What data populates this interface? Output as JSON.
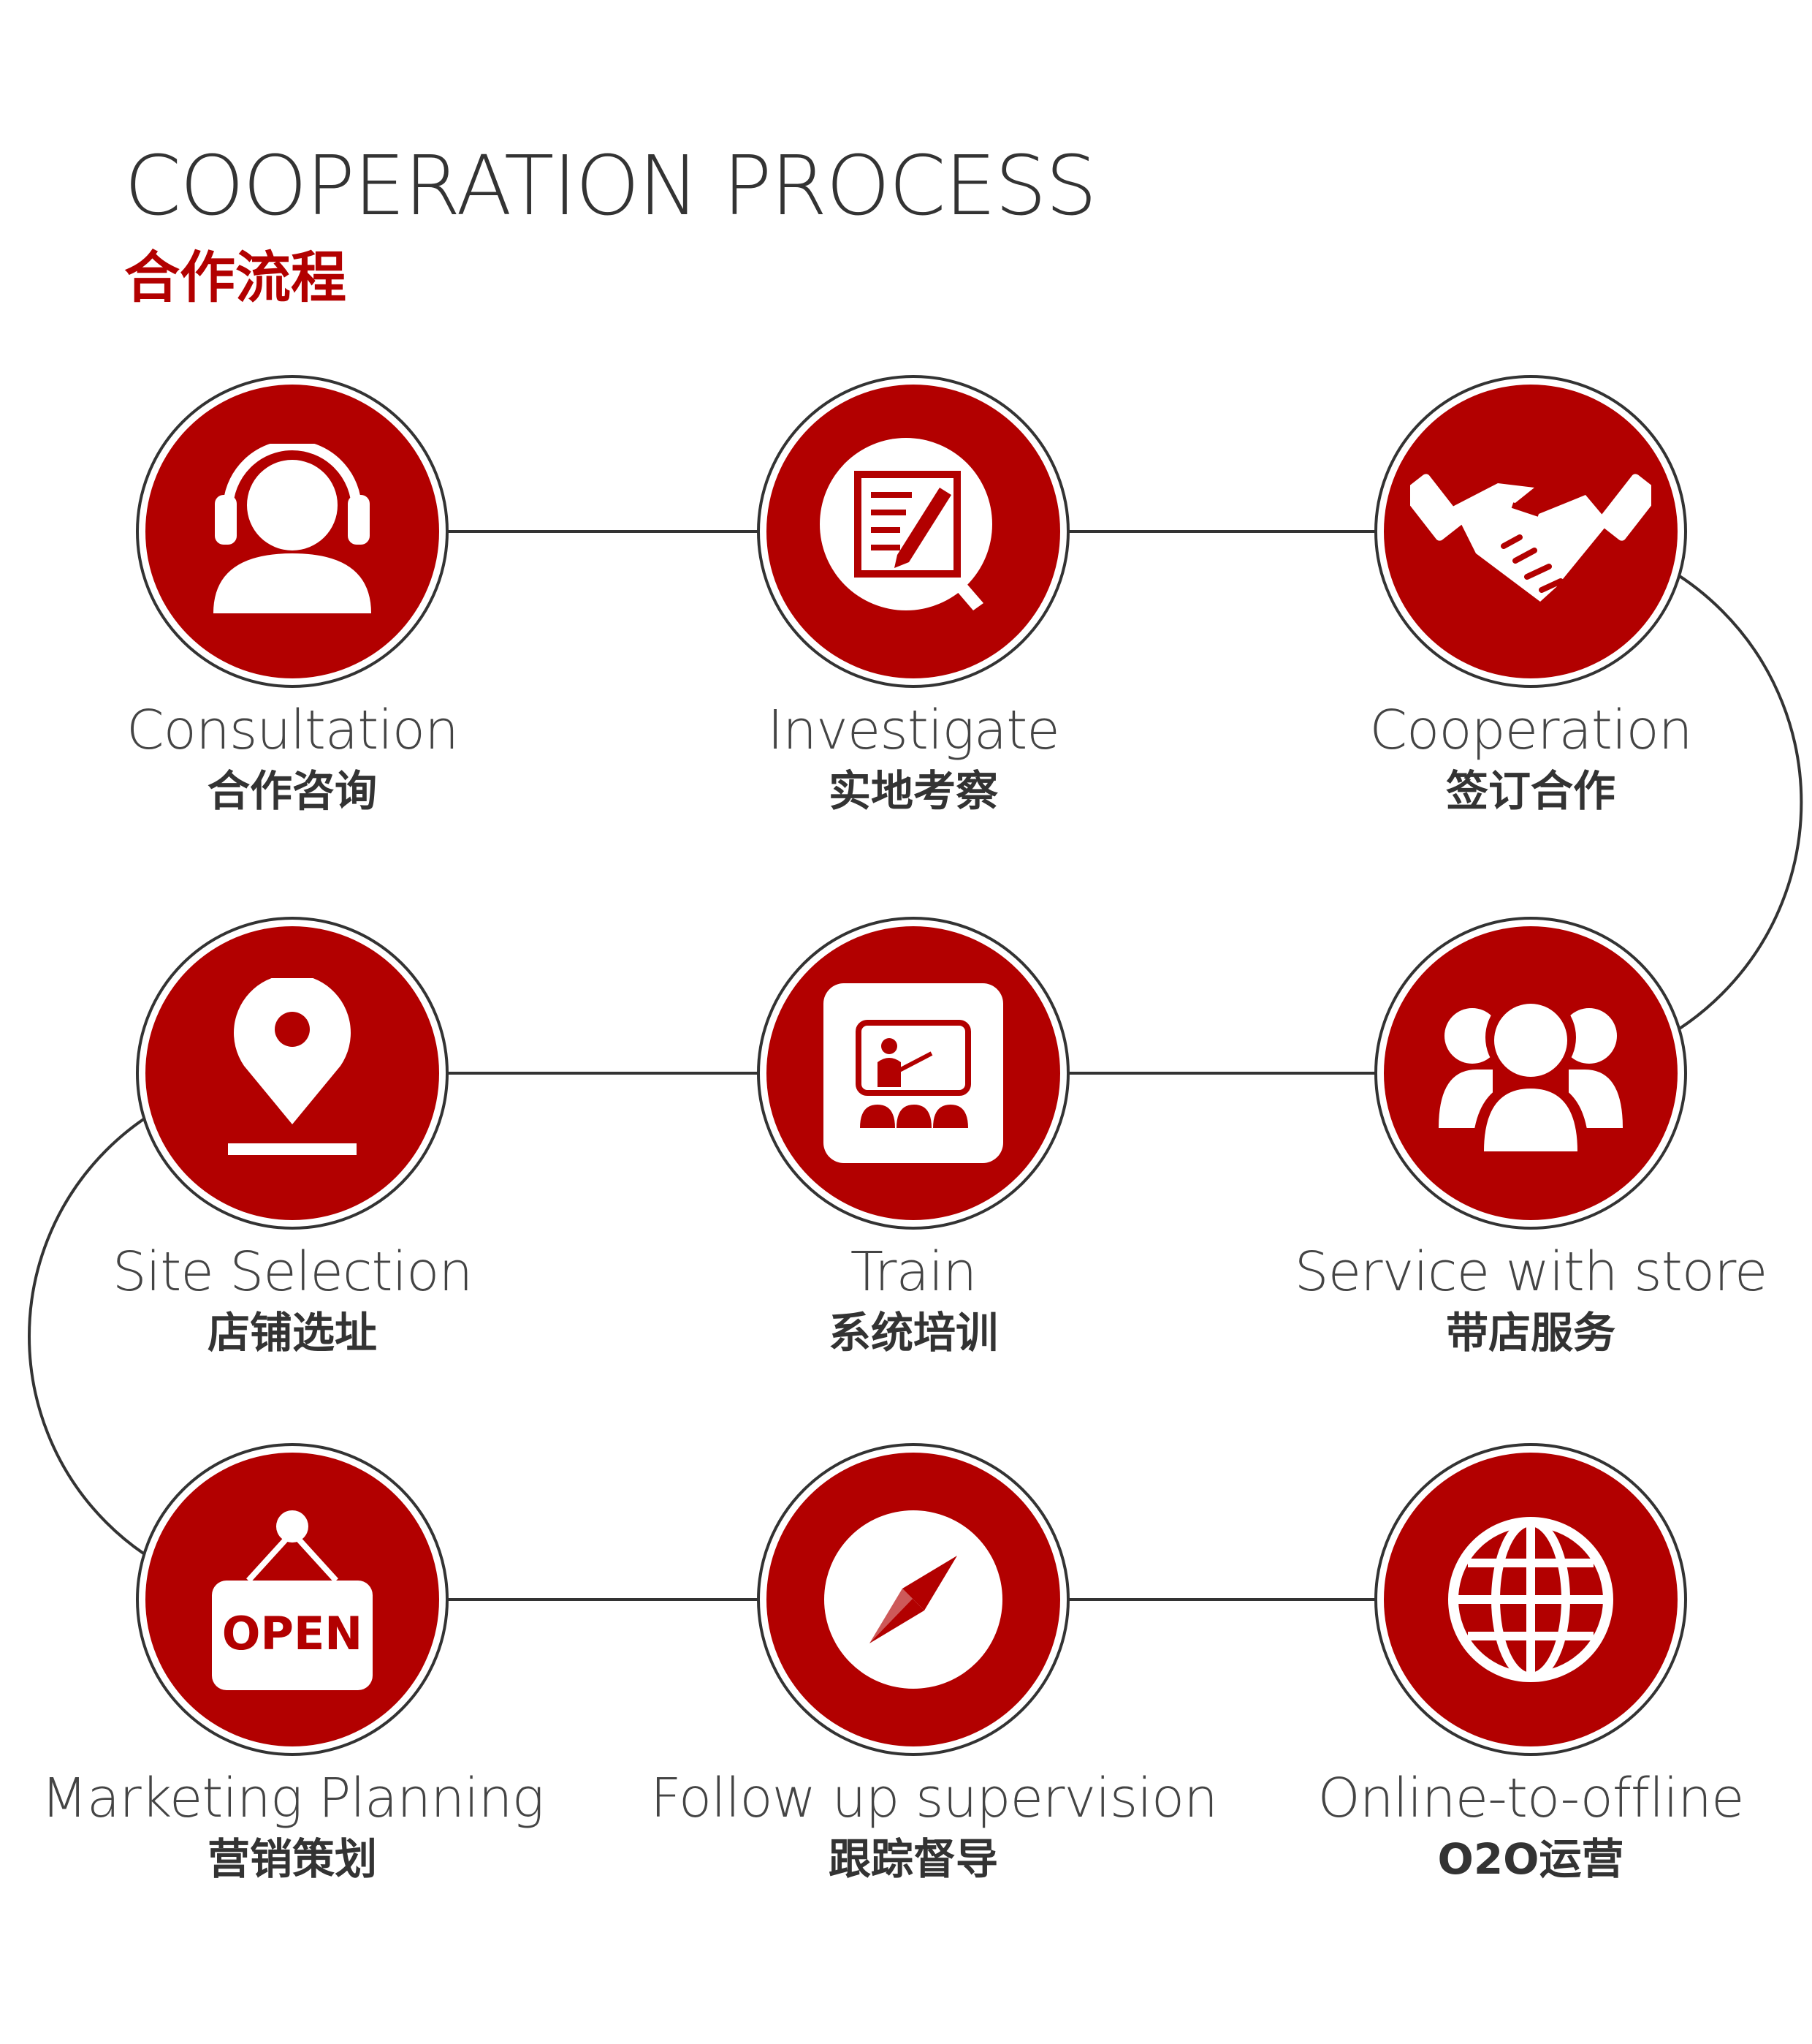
{
  "header": {
    "title_en": "COOPERATION PROCESS",
    "title_cn": "合作流程"
  },
  "colors": {
    "accent": "#b20000",
    "line": "#333333",
    "text": "#444444"
  },
  "steps": [
    {
      "en": "Consultation",
      "cn": "合作咨询",
      "icon": "headset-user-icon"
    },
    {
      "en": "Investigate",
      "cn": "实地考察",
      "icon": "document-inspect-icon"
    },
    {
      "en": "Cooperation",
      "cn": "签订合作",
      "icon": "handshake-icon"
    },
    {
      "en": "Service with store",
      "cn": "带店服务",
      "icon": "user-group-icon"
    },
    {
      "en": "Train",
      "cn": "系统培训",
      "icon": "training-board-icon"
    },
    {
      "en": "Site Selection",
      "cn": "店铺选址",
      "icon": "location-pin-icon"
    },
    {
      "en": "Marketing Planning",
      "cn": "营销策划",
      "icon": "open-sign-icon",
      "sign_text": "OPEN"
    },
    {
      "en": "Follow up supervision",
      "cn": "跟踪督导",
      "icon": "compass-icon"
    },
    {
      "en": "Online-to-offline",
      "cn": "O2O运营",
      "icon": "globe-icon"
    }
  ]
}
